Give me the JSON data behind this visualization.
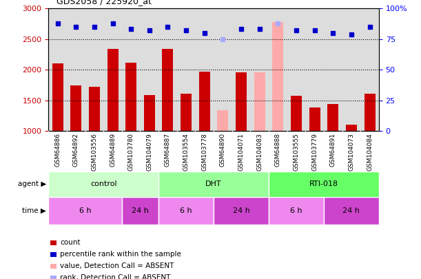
{
  "title": "GDS2058 / 225920_at",
  "samples": [
    "GSM64886",
    "GSM64892",
    "GSM103556",
    "GSM64889",
    "GSM103780",
    "GSM104079",
    "GSM64887",
    "GSM103554",
    "GSM103778",
    "GSM64890",
    "GSM104071",
    "GSM104083",
    "GSM64888",
    "GSM103555",
    "GSM103779",
    "GSM64891",
    "GSM104073",
    "GSM104084"
  ],
  "counts": [
    2100,
    1750,
    1720,
    2340,
    2110,
    1590,
    2340,
    1610,
    1970,
    1340,
    1960,
    1960,
    2780,
    1580,
    1380,
    1440,
    1100,
    1610
  ],
  "absent_flags": [
    false,
    false,
    false,
    false,
    false,
    false,
    false,
    false,
    false,
    true,
    false,
    true,
    true,
    false,
    false,
    false,
    false,
    false
  ],
  "percentile_ranks": [
    88,
    85,
    85,
    88,
    83,
    82,
    85,
    82,
    80,
    75,
    83,
    83,
    88,
    82,
    82,
    80,
    79,
    85
  ],
  "absent_rank_flags": [
    false,
    false,
    false,
    false,
    false,
    false,
    false,
    false,
    false,
    true,
    false,
    false,
    true,
    false,
    false,
    false,
    false,
    false
  ],
  "groups": [
    {
      "label": "control",
      "start": 0,
      "end": 6,
      "color": "#ccffcc"
    },
    {
      "label": "DHT",
      "start": 6,
      "end": 12,
      "color": "#99ff99"
    },
    {
      "label": "RTI-018",
      "start": 12,
      "end": 18,
      "color": "#66ff66"
    }
  ],
  "time_groups": [
    {
      "label": "6 h",
      "start": 0,
      "end": 4,
      "color": "#ee88ee"
    },
    {
      "label": "24 h",
      "start": 4,
      "end": 6,
      "color": "#cc44cc"
    },
    {
      "label": "6 h",
      "start": 6,
      "end": 9,
      "color": "#ee88ee"
    },
    {
      "label": "24 h",
      "start": 9,
      "end": 12,
      "color": "#cc44cc"
    },
    {
      "label": "6 h",
      "start": 12,
      "end": 15,
      "color": "#ee88ee"
    },
    {
      "label": "24 h",
      "start": 15,
      "end": 18,
      "color": "#cc44cc"
    }
  ],
  "bar_color": "#cc0000",
  "absent_bar_color": "#ffaaaa",
  "dot_color": "#0000cc",
  "absent_dot_color": "#aaaaff",
  "ylim_left": [
    1000,
    3000
  ],
  "ylim_right": [
    0,
    100
  ],
  "y_ticks_left": [
    1000,
    1500,
    2000,
    2500,
    3000
  ],
  "y_ticks_right": [
    0,
    25,
    50,
    75,
    100
  ],
  "grid_values": [
    1500,
    2000,
    2500
  ],
  "bar_width": 0.6,
  "plot_bg": "#dddddd",
  "label_bg": "#cccccc"
}
